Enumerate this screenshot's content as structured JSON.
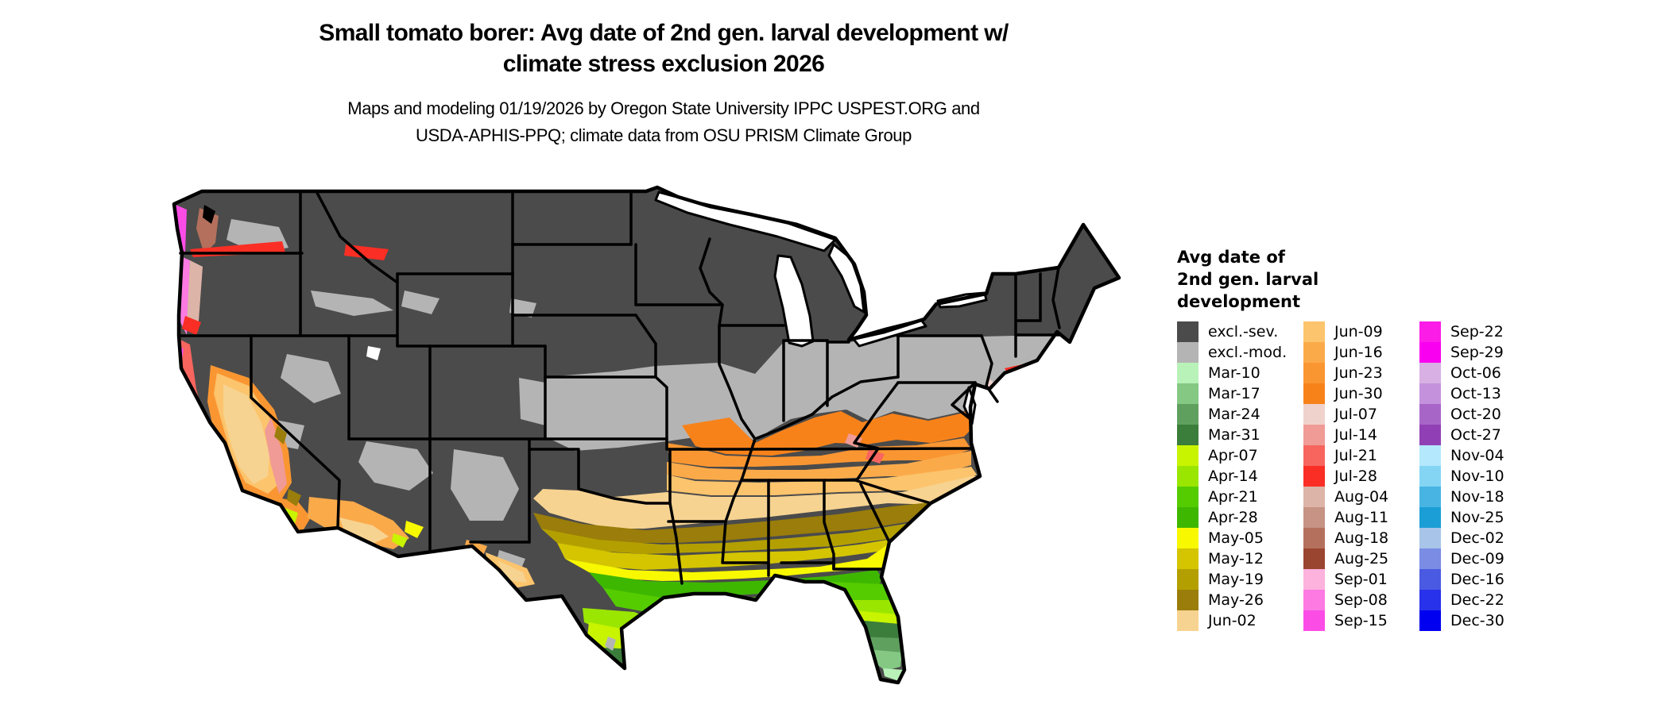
{
  "title": {
    "line1": "Small tomato borer: Avg date of 2nd gen. larval development w/",
    "line2": "climate stress exclusion 2026"
  },
  "subtitle": {
    "line1": "Maps and modeling 01/19/2026 by Oregon State University IPPC USPEST.ORG and",
    "line2": "USDA-APHIS-PPQ; climate data from OSU PRISM Climate Group"
  },
  "legend": {
    "title_lines": [
      "Avg date of",
      "2nd gen. larval",
      "development"
    ],
    "columns": [
      [
        {
          "label": "excl.-sev.",
          "color": "#4b4b4b"
        },
        {
          "label": "excl.-mod.",
          "color": "#b4b4b4"
        },
        {
          "label": "Mar-10",
          "color": "#b8f2b8"
        },
        {
          "label": "Mar-17",
          "color": "#84c884"
        },
        {
          "label": "Mar-24",
          "color": "#5fa05f"
        },
        {
          "label": "Mar-31",
          "color": "#3b7d3b"
        },
        {
          "label": "Apr-07",
          "color": "#c8f400"
        },
        {
          "label": "Apr-14",
          "color": "#9ae600"
        },
        {
          "label": "Apr-21",
          "color": "#55cc00"
        },
        {
          "label": "Apr-28",
          "color": "#3eb700"
        },
        {
          "label": "May-05",
          "color": "#f8f800"
        },
        {
          "label": "May-12",
          "color": "#d4c500"
        },
        {
          "label": "May-19",
          "color": "#b3a000"
        },
        {
          "label": "May-26",
          "color": "#9a7d0a"
        },
        {
          "label": "Jun-02",
          "color": "#f7d391"
        }
      ],
      [
        {
          "label": "Jun-09",
          "color": "#fcc46c"
        },
        {
          "label": "Jun-16",
          "color": "#fbaa4a"
        },
        {
          "label": "Jun-23",
          "color": "#fa9632"
        },
        {
          "label": "Jun-30",
          "color": "#f8821a"
        },
        {
          "label": "Jul-07",
          "color": "#f0d2cc"
        },
        {
          "label": "Jul-14",
          "color": "#f09b96"
        },
        {
          "label": "Jul-21",
          "color": "#f7655e"
        },
        {
          "label": "Jul-28",
          "color": "#fa2e24"
        },
        {
          "label": "Aug-04",
          "color": "#ddb4a8"
        },
        {
          "label": "Aug-11",
          "color": "#c69384"
        },
        {
          "label": "Aug-18",
          "color": "#b4705c"
        },
        {
          "label": "Aug-25",
          "color": "#9a4530"
        },
        {
          "label": "Sep-01",
          "color": "#fcb2dd"
        },
        {
          "label": "Sep-08",
          "color": "#fc7ae2"
        },
        {
          "label": "Sep-15",
          "color": "#fc4ce6"
        }
      ],
      [
        {
          "label": "Sep-22",
          "color": "#fc1ce8"
        },
        {
          "label": "Sep-29",
          "color": "#fa00f0"
        },
        {
          "label": "Oct-06",
          "color": "#d8b0e4"
        },
        {
          "label": "Oct-13",
          "color": "#c492dc"
        },
        {
          "label": "Oct-20",
          "color": "#a865c8"
        },
        {
          "label": "Oct-27",
          "color": "#9040b4"
        },
        {
          "label": "Nov-04",
          "color": "#b4e8fc"
        },
        {
          "label": "Nov-10",
          "color": "#84d4f4"
        },
        {
          "label": "Nov-18",
          "color": "#48b4e4"
        },
        {
          "label": "Nov-25",
          "color": "#1b9ed6"
        },
        {
          "label": "Dec-02",
          "color": "#a8c4e8"
        },
        {
          "label": "Dec-09",
          "color": "#7a8ce4"
        },
        {
          "label": "Dec-16",
          "color": "#4a5ae2"
        },
        {
          "label": "Dec-22",
          "color": "#2832ea"
        },
        {
          "label": "Dec-30",
          "color": "#0000f0"
        }
      ]
    ]
  },
  "palette": {
    "excl_sev": "#4b4b4b",
    "excl_mod": "#b4b4b4",
    "mar10": "#b8f2b8",
    "mar17": "#84c884",
    "mar24": "#5fa05f",
    "mar31": "#3b7d3b",
    "apr07": "#c8f400",
    "apr14": "#9ae600",
    "apr21": "#55cc00",
    "apr28": "#3eb700",
    "may05": "#f8f800",
    "may12": "#d4c500",
    "may19": "#b3a000",
    "may26": "#9a7d0a",
    "jun02": "#f7d391",
    "jun09": "#fcc46c",
    "jun16": "#fbaa4a",
    "jun23": "#fa9632",
    "jun30": "#f8821a",
    "jul07": "#f0d2cc",
    "jul14": "#f09b96",
    "jul21": "#f7655e",
    "jul28": "#fa2e24",
    "aug04": "#ddb4a8",
    "aug11": "#c69384",
    "aug18": "#b4705c",
    "aug25": "#9a4530",
    "sep01": "#fcb2dd",
    "sep08": "#fc7ae2",
    "sep15": "#fc4ce6",
    "water": "#000000"
  }
}
